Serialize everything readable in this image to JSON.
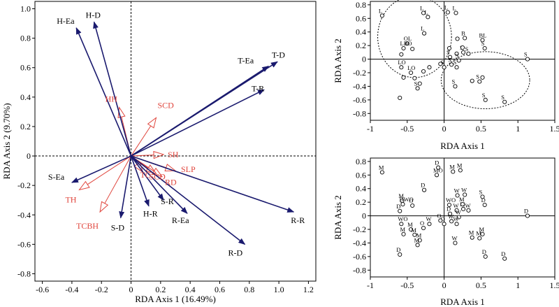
{
  "chart_data": [
    {
      "type": "scatter",
      "subtype": "rda-biplot",
      "xlabel": "RDA Axis 1 (16.49%)",
      "ylabel": "RDA Axis 2 (9.70%)",
      "xlim": [
        -0.65,
        1.25
      ],
      "ylim": [
        -0.85,
        1.05
      ],
      "xticks": [
        -0.6,
        -0.4,
        -0.2,
        0,
        0.2,
        0.4,
        0.6,
        0.8,
        1.0,
        1.2
      ],
      "yticks": [
        -0.8,
        -0.6,
        -0.4,
        -0.2,
        0,
        0.2,
        0.4,
        0.6,
        0.8,
        1.0
      ],
      "grid": false,
      "colors": {
        "response": "#1a1a6e",
        "explanatory": "#e0453c",
        "axis": "#000000"
      },
      "series": [
        {
          "name": "response variables",
          "points": [
            {
              "label": "H-Ea",
              "x": -0.37,
              "y": 0.87
            },
            {
              "label": "H-D",
              "x": -0.25,
              "y": 0.91
            },
            {
              "label": "T-Ea",
              "x": 0.93,
              "y": 0.61
            },
            {
              "label": "T-D",
              "x": 0.99,
              "y": 0.64
            },
            {
              "label": "T-R",
              "x": 0.9,
              "y": 0.45
            },
            {
              "label": "S-Ea",
              "x": -0.4,
              "y": -0.18
            },
            {
              "label": "S-D",
              "x": -0.07,
              "y": -0.42
            },
            {
              "label": "H-R",
              "x": 0.12,
              "y": -0.34
            },
            {
              "label": "S-R",
              "x": 0.22,
              "y": -0.3
            },
            {
              "label": "R-Ea",
              "x": 0.38,
              "y": -0.39
            },
            {
              "label": "R-D",
              "x": 0.77,
              "y": -0.6
            },
            {
              "label": "R-R",
              "x": 1.1,
              "y": -0.38
            }
          ]
        },
        {
          "name": "explanatory variables",
          "points": [
            {
              "label": "HH",
              "x": -0.08,
              "y": 0.33
            },
            {
              "label": "SCD",
              "x": 0.17,
              "y": 0.26
            },
            {
              "label": "SH",
              "x": 0.22,
              "y": 0.01
            },
            {
              "label": "SLP",
              "x": 0.3,
              "y": -0.1
            },
            {
              "label": "TC",
              "x": 0.08,
              "y": -0.11
            },
            {
              "label": "SCD",
              "x": 0.17,
              "y": -0.12
            },
            {
              "label": "RD",
              "x": 0.21,
              "y": -0.14
            },
            {
              "label": "TH",
              "x": -0.35,
              "y": -0.23
            },
            {
              "label": "TCBH",
              "x": -0.21,
              "y": -0.38
            }
          ]
        }
      ]
    },
    {
      "type": "scatter",
      "xlabel": "RDA Axis 1",
      "ylabel": "RDA Axis 2",
      "xlim": [
        -1,
        1.5
      ],
      "ylim": [
        -0.9,
        0.85
      ],
      "xticks": [
        -1,
        -0.5,
        0,
        0.5,
        1,
        1.5
      ],
      "yticks": [
        -0.8,
        -0.6,
        -0.4,
        -0.2,
        0,
        0.2,
        0.4,
        0.6,
        0.8
      ],
      "grid": false,
      "groups": [
        {
          "cx": -0.4,
          "cy": 0.33,
          "rx": 0.5,
          "ry": 0.6
        },
        {
          "cx": 0.56,
          "cy": -0.31,
          "rx": 0.6,
          "ry": 0.42
        }
      ],
      "points": [
        {
          "x": -0.84,
          "y": 0.64,
          "label": "L"
        },
        {
          "x": -0.28,
          "y": 0.68,
          "label": "L"
        },
        {
          "x": -0.22,
          "y": 0.62,
          "label": "L"
        },
        {
          "x": 0.05,
          "y": 0.69,
          "label": "L"
        },
        {
          "x": 0.16,
          "y": 0.68,
          "label": "L"
        },
        {
          "x": -0.27,
          "y": 0.38,
          "label": "L"
        },
        {
          "x": -0.5,
          "y": 0.23,
          "label": "OL"
        },
        {
          "x": -0.55,
          "y": 0.16,
          "label": "LBO"
        },
        {
          "x": -0.43,
          "y": 0.15,
          "label": ""
        },
        {
          "x": -0.58,
          "y": 0.07,
          "label": ""
        },
        {
          "x": -0.58,
          "y": -0.12,
          "label": "LO"
        },
        {
          "x": -0.45,
          "y": -0.2,
          "label": "LO"
        },
        {
          "x": -0.55,
          "y": -0.27,
          "label": ""
        },
        {
          "x": -0.6,
          "y": -0.57,
          "label": ""
        },
        {
          "x": -0.4,
          "y": -0.28,
          "label": ""
        },
        {
          "x": -0.33,
          "y": -0.36,
          "label": ""
        },
        {
          "x": -0.36,
          "y": -0.43,
          "label": "S"
        },
        {
          "x": -0.2,
          "y": -0.12,
          "label": ""
        },
        {
          "x": -0.28,
          "y": -0.18,
          "label": ""
        },
        {
          "x": 0.07,
          "y": 0.16,
          "label": ""
        },
        {
          "x": 0.08,
          "y": 0.03,
          "label": "S"
        },
        {
          "x": 0.17,
          "y": 0.08,
          "label": ""
        },
        {
          "x": 0.2,
          "y": -0.02,
          "label": "S"
        },
        {
          "x": 0.17,
          "y": -0.12,
          "label": "S"
        },
        {
          "x": 0.1,
          "y": -0.08,
          "label": "S"
        },
        {
          "x": 0.0,
          "y": -0.12,
          "label": "S"
        },
        {
          "x": -0.05,
          "y": -0.07,
          "label": ""
        },
        {
          "x": 0.28,
          "y": 0.31,
          "label": "B"
        },
        {
          "x": 0.52,
          "y": 0.28,
          "label": "BL"
        },
        {
          "x": 0.18,
          "y": 0.3,
          "label": ""
        },
        {
          "x": 0.26,
          "y": 0.1,
          "label": "S"
        },
        {
          "x": 0.33,
          "y": 0.08,
          "label": "S"
        },
        {
          "x": 0.55,
          "y": 0.16,
          "label": "S"
        },
        {
          "x": 1.13,
          "y": 0.0,
          "label": "S"
        },
        {
          "x": 0.38,
          "y": -0.32,
          "label": ""
        },
        {
          "x": 0.15,
          "y": -0.4,
          "label": "S"
        },
        {
          "x": 0.52,
          "y": -0.27,
          "label": ""
        },
        {
          "x": 0.48,
          "y": -0.33,
          "label": "S"
        },
        {
          "x": 0.56,
          "y": -0.6,
          "label": "S"
        },
        {
          "x": 0.82,
          "y": -0.63,
          "label": "S"
        },
        {
          "x": 0.25,
          "y": 0.17,
          "label": ""
        }
      ]
    },
    {
      "type": "scatter",
      "xlabel": "RDA Axis 1",
      "ylabel": "RDA Axis 2",
      "xlim": [
        -1,
        1.5
      ],
      "ylim": [
        -0.9,
        0.85
      ],
      "xticks": [
        -1,
        -0.5,
        0,
        0.5,
        1,
        1.5
      ],
      "yticks": [
        -0.8,
        -0.6,
        -0.4,
        -0.2,
        0,
        0.2,
        0.4,
        0.6,
        0.8
      ],
      "grid": false,
      "points": [
        {
          "x": -0.84,
          "y": 0.64,
          "label": "M"
        },
        {
          "x": -0.1,
          "y": 0.6,
          "label": "MO"
        },
        {
          "x": -0.08,
          "y": 0.71,
          "label": "D"
        },
        {
          "x": 0.12,
          "y": 0.65,
          "label": "M"
        },
        {
          "x": 0.22,
          "y": 0.67,
          "label": "M"
        },
        {
          "x": -0.27,
          "y": 0.38,
          "label": "D"
        },
        {
          "x": -0.57,
          "y": 0.22,
          "label": "M"
        },
        {
          "x": -0.56,
          "y": 0.17,
          "label": "DWO"
        },
        {
          "x": -0.43,
          "y": 0.15,
          "label": "O"
        },
        {
          "x": -0.6,
          "y": 0.07,
          "label": "D"
        },
        {
          "x": -0.58,
          "y": -0.12,
          "label": "WO"
        },
        {
          "x": -0.45,
          "y": -0.2,
          "label": "M"
        },
        {
          "x": -0.55,
          "y": -0.27,
          "label": "M"
        },
        {
          "x": -0.6,
          "y": -0.57,
          "label": "D"
        },
        {
          "x": -0.4,
          "y": -0.28,
          "label": "M"
        },
        {
          "x": -0.33,
          "y": -0.36,
          "label": "M"
        },
        {
          "x": -0.36,
          "y": -0.43,
          "label": "M"
        },
        {
          "x": -0.2,
          "y": -0.12,
          "label": "W"
        },
        {
          "x": -0.28,
          "y": -0.18,
          "label": "O"
        },
        {
          "x": 0.07,
          "y": 0.16,
          "label": "WO"
        },
        {
          "x": 0.08,
          "y": 0.03,
          "label": "D"
        },
        {
          "x": 0.17,
          "y": 0.08,
          "label": "W"
        },
        {
          "x": 0.2,
          "y": -0.02,
          "label": "W"
        },
        {
          "x": 0.17,
          "y": -0.12,
          "label": "W"
        },
        {
          "x": 0.1,
          "y": -0.08,
          "label": "W"
        },
        {
          "x": 0.0,
          "y": -0.12,
          "label": "O"
        },
        {
          "x": -0.05,
          "y": -0.07,
          "label": "O"
        },
        {
          "x": 0.28,
          "y": 0.31,
          "label": "W"
        },
        {
          "x": 0.52,
          "y": 0.28,
          "label": "S"
        },
        {
          "x": 0.18,
          "y": 0.3,
          "label": "W"
        },
        {
          "x": 0.26,
          "y": 0.1,
          "label": "M"
        },
        {
          "x": 0.33,
          "y": 0.08,
          "label": "W"
        },
        {
          "x": 0.55,
          "y": 0.16,
          "label": "D"
        },
        {
          "x": 1.13,
          "y": 0.0,
          "label": "D"
        },
        {
          "x": 0.38,
          "y": -0.32,
          "label": "M"
        },
        {
          "x": 0.15,
          "y": -0.4,
          "label": "W"
        },
        {
          "x": 0.52,
          "y": -0.27,
          "label": "M"
        },
        {
          "x": 0.48,
          "y": -0.33,
          "label": "M"
        },
        {
          "x": 0.56,
          "y": -0.6,
          "label": "D"
        },
        {
          "x": 0.82,
          "y": -0.63,
          "label": "D"
        },
        {
          "x": 0.25,
          "y": 0.17,
          "label": "M"
        }
      ]
    }
  ]
}
